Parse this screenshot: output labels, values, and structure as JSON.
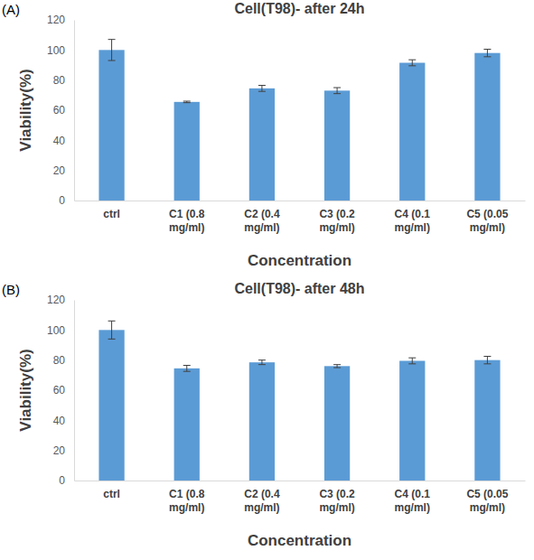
{
  "chart_data": [
    {
      "type": "bar",
      "title": "Cell(T98)- after 24h",
      "annotations": [
        "(A)"
      ],
      "x_label": "Concentration",
      "y_label": "Viability(%)",
      "categories": [
        "ctrl",
        "C1 (0.8 mg/ml)",
        "C2 (0.4 mg/ml)",
        "C3 (0.2 mg/ml)",
        "C4 (0.1 mg/ml)",
        "C5 (0.05 mg/ml)"
      ],
      "values": [
        100,
        65.5,
        74.5,
        73,
        91.5,
        98
      ],
      "errors": [
        7,
        0.5,
        2,
        2,
        2,
        2.5
      ],
      "color": "#5b9bd5",
      "ylim": [
        0,
        120
      ],
      "yticks": [
        0,
        20,
        40,
        60,
        80,
        100,
        120
      ],
      "grid": false
    },
    {
      "type": "bar",
      "title": "Cell(T98)- after 48h",
      "annotations": [
        "(B)"
      ],
      "x_label": "Concentration",
      "y_label": "Viability(%)",
      "categories": [
        "ctrl",
        "C1 (0.8 mg/ml)",
        "C2 (0.4 mg/ml)",
        "C3 (0.2 mg/ml)",
        "C4 (0.1 mg/ml)",
        "C5 (0.05 mg/ml)"
      ],
      "values": [
        100,
        74.5,
        78.5,
        76,
        79.5,
        80
      ],
      "errors": [
        6,
        2,
        1.5,
        1,
        2,
        2.5
      ],
      "color": "#5b9bd5",
      "ylim": [
        0,
        120
      ],
      "yticks": [
        0,
        20,
        40,
        60,
        80,
        100,
        120
      ],
      "grid": false
    }
  ]
}
